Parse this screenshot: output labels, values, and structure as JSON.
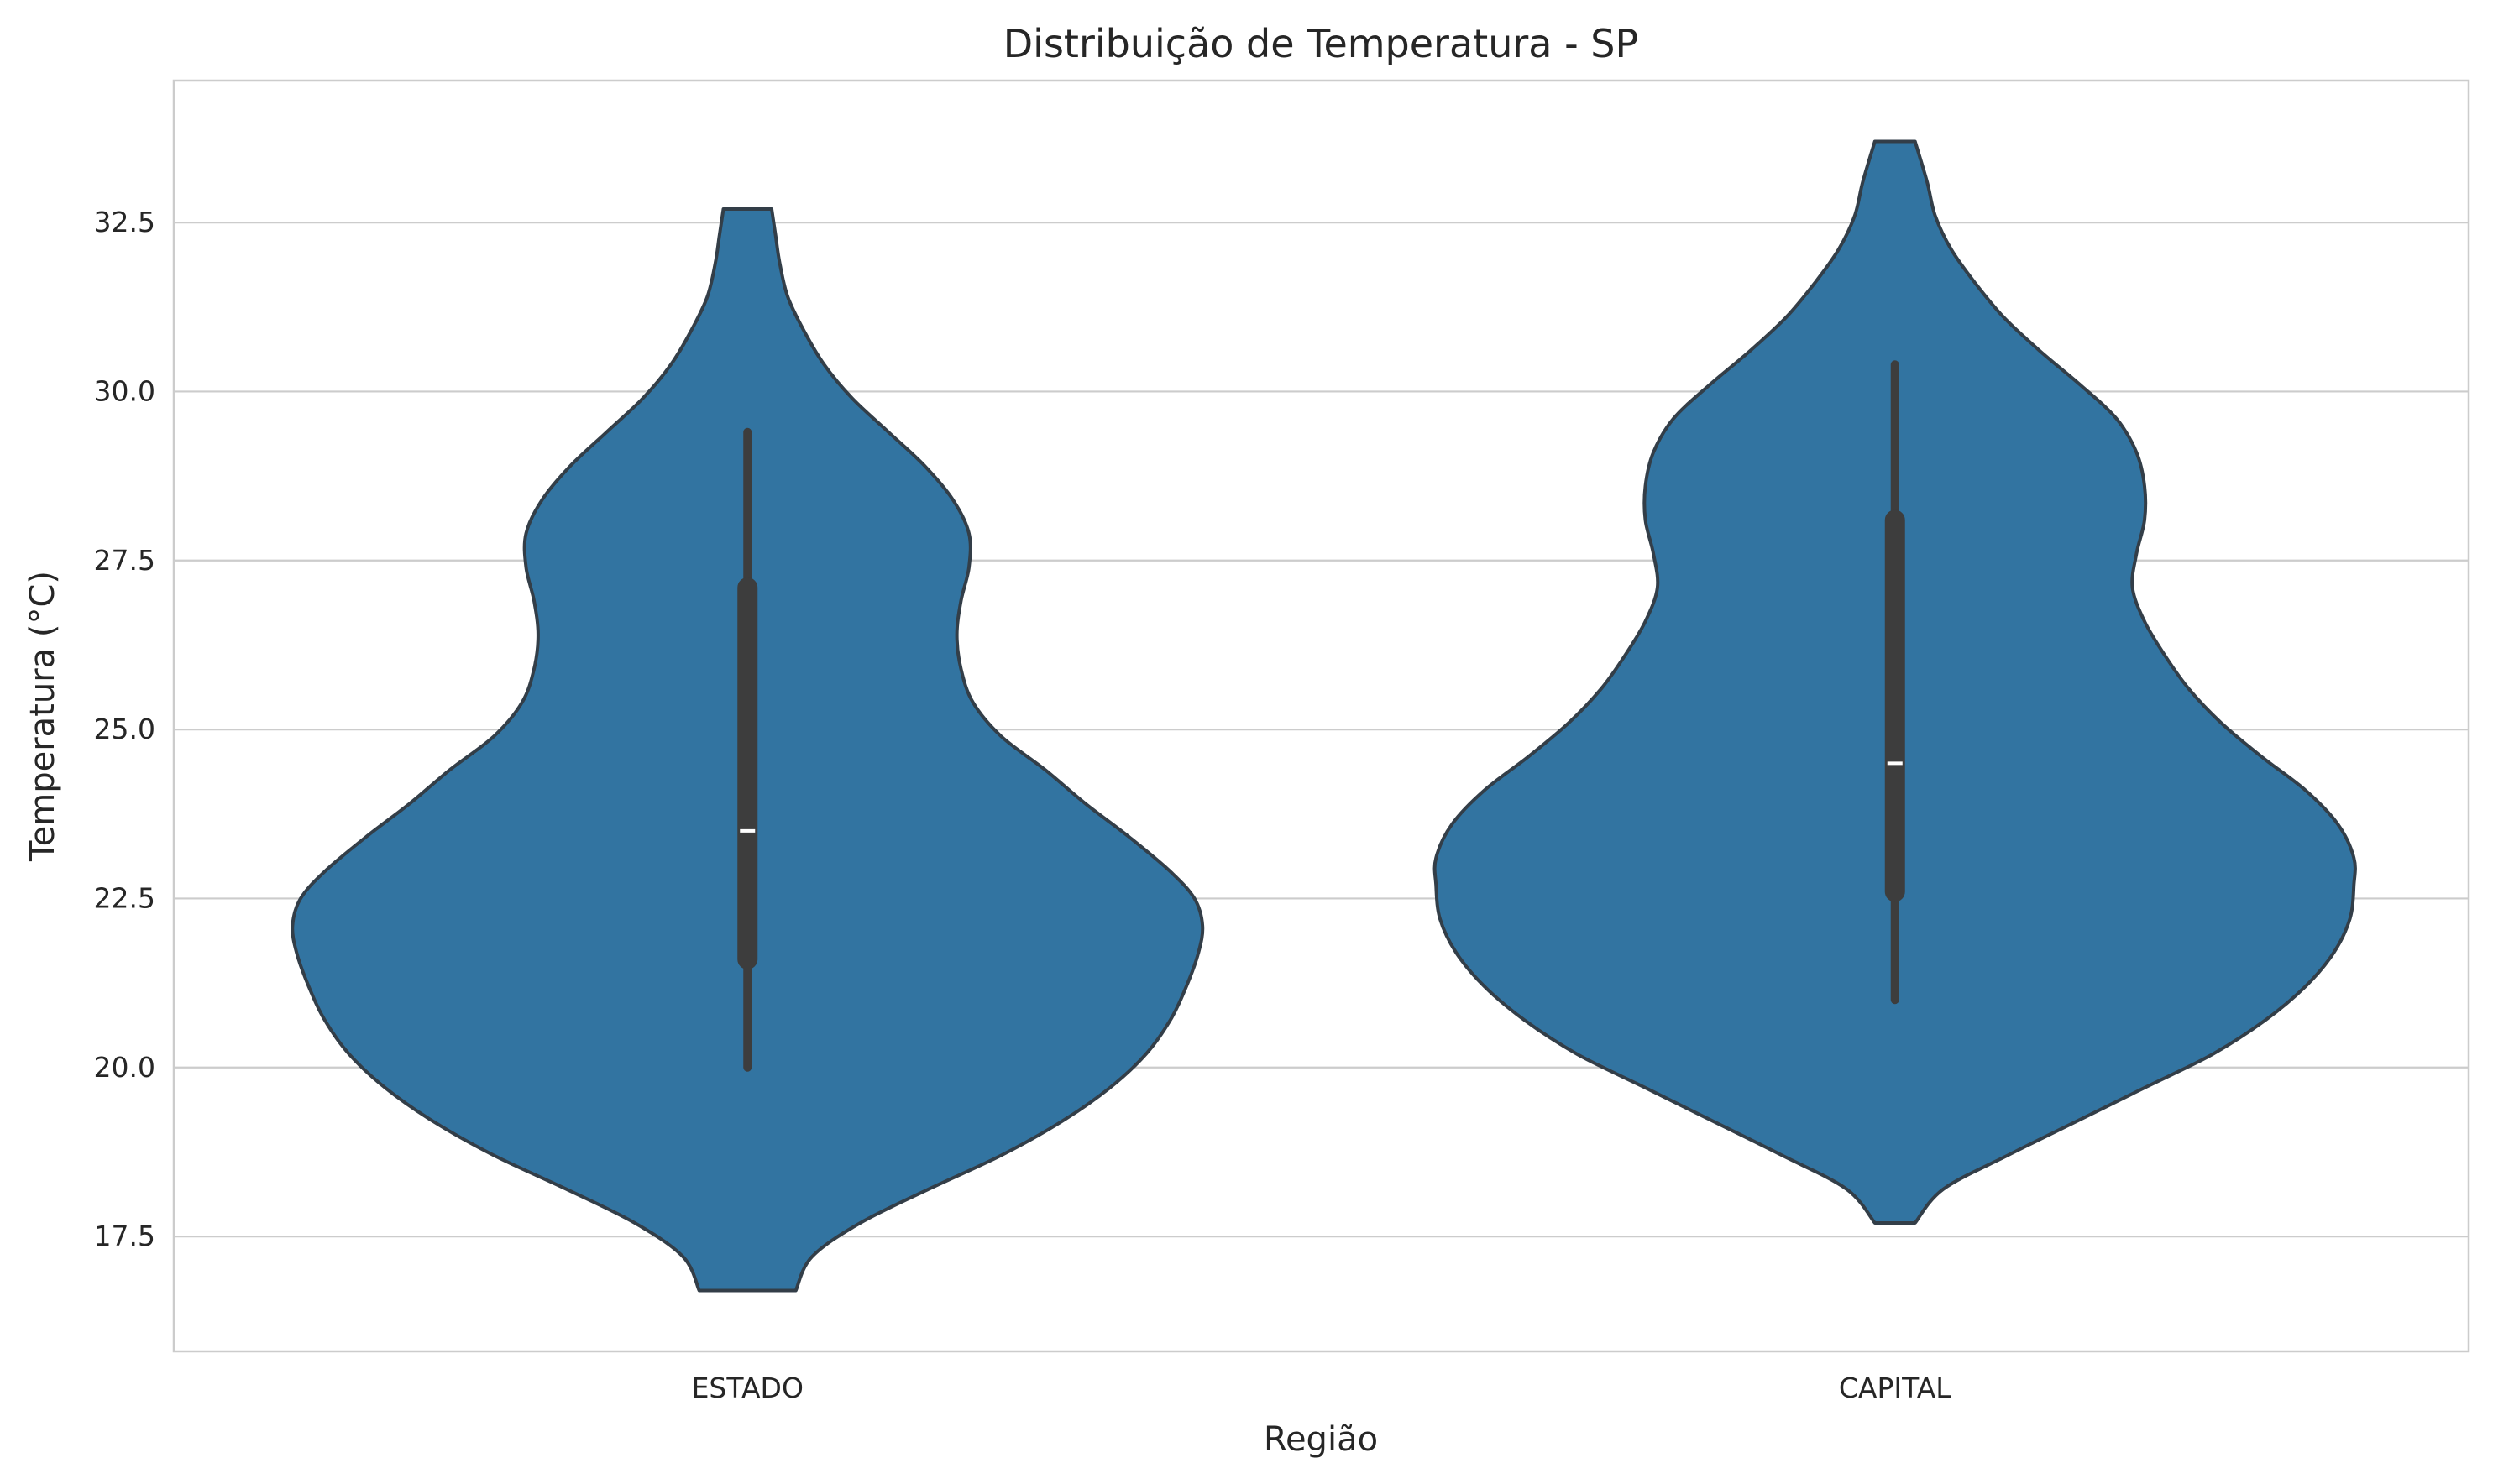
{
  "chart_data": {
    "type": "violin",
    "title": "Distribuição de Temperatura - SP",
    "xlabel": "Região",
    "ylabel": "Temperatura (°C)",
    "ylim": [
      15.8,
      34.6
    ],
    "yticks": [
      17.5,
      20.0,
      22.5,
      25.0,
      27.5,
      30.0,
      32.5
    ],
    "ytick_labels": [
      "17.5",
      "20.0",
      "22.5",
      "25.0",
      "27.5",
      "30.0",
      "32.5"
    ],
    "categories": [
      "ESTADO",
      "CAPITAL"
    ],
    "grid": true,
    "colors": {
      "fill": "#3274a1",
      "edge": "#333e48",
      "box": "#3d3d3d",
      "median": "#ffffff"
    },
    "series": [
      {
        "category": "ESTADO",
        "min": 20.0,
        "q1": 21.6,
        "median": 23.5,
        "q3": 27.1,
        "max": 29.4,
        "density_range": [
          16.7,
          32.7
        ],
        "density": [
          [
            16.7,
            0.12
          ],
          [
            17.2,
            0.16
          ],
          [
            17.7,
            0.28
          ],
          [
            18.2,
            0.45
          ],
          [
            18.7,
            0.63
          ],
          [
            19.2,
            0.78
          ],
          [
            19.7,
            0.9
          ],
          [
            20.2,
            0.99
          ],
          [
            20.7,
            1.05
          ],
          [
            21.2,
            1.09
          ],
          [
            21.7,
            1.12
          ],
          [
            22.1,
            1.13
          ],
          [
            22.5,
            1.11
          ],
          [
            22.9,
            1.05
          ],
          [
            23.4,
            0.95
          ],
          [
            23.9,
            0.84
          ],
          [
            24.4,
            0.74
          ],
          [
            24.9,
            0.63
          ],
          [
            25.4,
            0.56
          ],
          [
            25.9,
            0.53
          ],
          [
            26.4,
            0.52
          ],
          [
            26.9,
            0.53
          ],
          [
            27.4,
            0.55
          ],
          [
            27.9,
            0.55
          ],
          [
            28.4,
            0.51
          ],
          [
            28.9,
            0.44
          ],
          [
            29.4,
            0.35
          ],
          [
            29.9,
            0.26
          ],
          [
            30.4,
            0.19
          ],
          [
            30.9,
            0.14
          ],
          [
            31.4,
            0.1
          ],
          [
            31.9,
            0.08
          ],
          [
            32.3,
            0.07
          ],
          [
            32.7,
            0.06
          ]
        ]
      },
      {
        "category": "CAPITAL",
        "min": 21.0,
        "q1": 22.6,
        "median": 24.5,
        "q3": 28.1,
        "max": 30.4,
        "density_range": [
          17.7,
          33.7
        ],
        "density": [
          [
            17.7,
            0.05
          ],
          [
            18.2,
            0.12
          ],
          [
            18.7,
            0.28
          ],
          [
            19.2,
            0.45
          ],
          [
            19.7,
            0.62
          ],
          [
            20.2,
            0.79
          ],
          [
            20.7,
            0.92
          ],
          [
            21.2,
            1.02
          ],
          [
            21.7,
            1.09
          ],
          [
            22.2,
            1.13
          ],
          [
            22.7,
            1.14
          ],
          [
            23.1,
            1.14
          ],
          [
            23.6,
            1.1
          ],
          [
            24.1,
            1.02
          ],
          [
            24.6,
            0.91
          ],
          [
            25.1,
            0.81
          ],
          [
            25.6,
            0.73
          ],
          [
            26.1,
            0.67
          ],
          [
            26.6,
            0.62
          ],
          [
            27.1,
            0.59
          ],
          [
            27.6,
            0.6
          ],
          [
            28.1,
            0.62
          ],
          [
            28.6,
            0.62
          ],
          [
            29.1,
            0.6
          ],
          [
            29.6,
            0.55
          ],
          [
            30.1,
            0.46
          ],
          [
            30.6,
            0.36
          ],
          [
            31.1,
            0.27
          ],
          [
            31.6,
            0.2
          ],
          [
            32.1,
            0.14
          ],
          [
            32.6,
            0.1
          ],
          [
            33.1,
            0.08
          ],
          [
            33.7,
            0.05
          ]
        ]
      }
    ]
  }
}
